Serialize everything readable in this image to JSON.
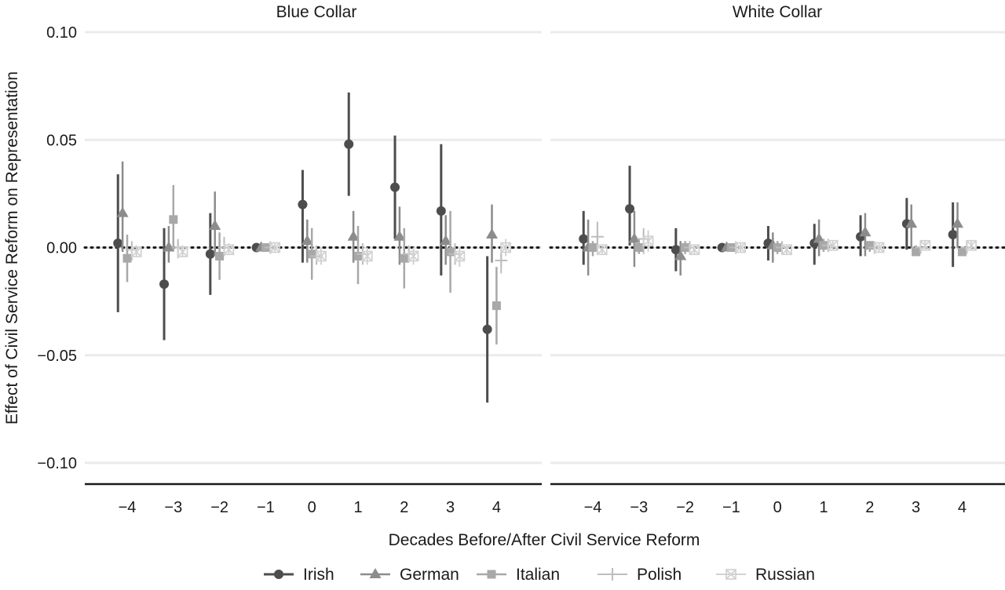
{
  "chart_data": {
    "type": "scatter",
    "subtype": "coefficient plot with confidence intervals",
    "xlabel": "Decades Before/After Civil Service Reform",
    "ylabel": "Effect of Civil Service Reform on Representation",
    "x_ticks": [
      "−4",
      "−3",
      "−2",
      "−1",
      "0",
      "1",
      "2",
      "3",
      "4"
    ],
    "y_ticks": [
      "0.10",
      "0.05",
      "0.00",
      "−0.05",
      "−0.10"
    ],
    "ylim": [
      -0.11,
      0.105
    ],
    "grid": true,
    "reference_line": 0,
    "legend_position": "bottom",
    "x": [
      -4,
      -3,
      -2,
      -1,
      0,
      1,
      2,
      3,
      4
    ],
    "series": [
      {
        "name": "Irish",
        "marker": "circle",
        "color": "#4d4d4d",
        "lw": 3
      },
      {
        "name": "German",
        "marker": "triangle",
        "color": "#8c8c8c",
        "lw": 2.5
      },
      {
        "name": "Italian",
        "marker": "square",
        "color": "#a8a8a8",
        "lw": 2.5
      },
      {
        "name": "Polish",
        "marker": "plus",
        "color": "#bdbdbd",
        "lw": 2
      },
      {
        "name": "Russian",
        "marker": "square-x",
        "color": "#d2d2d2",
        "lw": 2
      }
    ],
    "panels": [
      {
        "title": "Blue Collar",
        "estimates": {
          "Irish": [
            0.002,
            -0.017,
            -0.003,
            0.0,
            0.02,
            0.048,
            0.028,
            0.017,
            -0.038
          ],
          "German": [
            0.016,
            0.0,
            0.01,
            0.0,
            0.003,
            0.005,
            0.005,
            0.003,
            0.006
          ],
          "Italian": [
            -0.005,
            0.013,
            -0.004,
            0.0,
            -0.003,
            -0.004,
            -0.005,
            -0.002,
            -0.027
          ],
          "Polish": [
            -0.001,
            0.0,
            0.0,
            0.0,
            -0.004,
            -0.003,
            -0.003,
            -0.003,
            -0.006
          ],
          "Russian": [
            -0.002,
            -0.002,
            -0.001,
            0.0,
            -0.004,
            -0.004,
            -0.004,
            -0.004,
            0.0
          ]
        },
        "ci_low": {
          "Irish": [
            -0.03,
            -0.043,
            -0.022,
            0.0,
            -0.007,
            0.024,
            0.004,
            -0.013,
            -0.072
          ],
          "German": [
            -0.002,
            -0.007,
            -0.004,
            -0.001,
            -0.007,
            -0.007,
            -0.008,
            -0.008,
            -0.007
          ],
          "Italian": [
            -0.016,
            -0.001,
            -0.015,
            -0.001,
            -0.015,
            -0.017,
            -0.019,
            -0.021,
            -0.045
          ],
          "Polish": [
            -0.006,
            -0.005,
            -0.004,
            -0.002,
            -0.008,
            -0.008,
            -0.007,
            -0.008,
            -0.012
          ],
          "Russian": [
            -0.004,
            -0.004,
            -0.003,
            -0.002,
            -0.008,
            -0.008,
            -0.008,
            -0.009,
            -0.004
          ]
        },
        "ci_high": {
          "Irish": [
            0.034,
            0.009,
            0.016,
            0.001,
            0.036,
            0.072,
            0.052,
            0.048,
            -0.004
          ],
          "German": [
            0.04,
            0.01,
            0.026,
            0.002,
            0.013,
            0.017,
            0.019,
            0.015,
            0.02
          ],
          "Italian": [
            0.006,
            0.029,
            0.007,
            0.002,
            0.009,
            0.01,
            0.009,
            0.017,
            -0.009
          ],
          "Polish": [
            0.003,
            0.004,
            0.005,
            0.002,
            0.001,
            0.002,
            0.001,
            0.002,
            0.0
          ],
          "Russian": [
            0.001,
            0.001,
            0.002,
            0.002,
            0.0,
            0.0,
            0.0,
            -0.0,
            0.004
          ]
        }
      },
      {
        "title": "White Collar",
        "estimates": {
          "Irish": [
            0.004,
            0.018,
            -0.001,
            0.0,
            0.002,
            0.002,
            0.005,
            0.011,
            0.006
          ],
          "German": [
            0.0,
            0.004,
            -0.004,
            0.0,
            0.001,
            0.004,
            0.007,
            0.011,
            0.011
          ],
          "Italian": [
            0.0,
            0.0,
            0.0,
            0.0,
            0.0,
            0.001,
            0.001,
            -0.002,
            -0.002
          ],
          "Polish": [
            0.005,
            0.004,
            0.0,
            0.0,
            0.0,
            0.001,
            0.0,
            0.0,
            0.0
          ],
          "Russian": [
            -0.001,
            0.003,
            -0.001,
            0.0,
            -0.001,
            0.001,
            0.0,
            0.001,
            0.001
          ]
        },
        "ci_low": {
          "Irish": [
            -0.008,
            0.001,
            -0.011,
            0.0,
            -0.006,
            -0.008,
            -0.004,
            -0.001,
            -0.009
          ],
          "German": [
            -0.013,
            -0.009,
            -0.013,
            -0.001,
            -0.007,
            -0.004,
            -0.004,
            0.0,
            0.0
          ],
          "Italian": [
            -0.004,
            -0.003,
            -0.003,
            -0.001,
            -0.003,
            -0.002,
            -0.002,
            -0.004,
            -0.004
          ],
          "Polish": [
            -0.002,
            -0.003,
            -0.003,
            -0.001,
            -0.003,
            -0.002,
            -0.002,
            -0.002,
            -0.002
          ],
          "Russian": [
            -0.003,
            -0.002,
            -0.003,
            -0.002,
            -0.003,
            -0.001,
            -0.002,
            -0.001,
            -0.001
          ]
        },
        "ci_high": {
          "Irish": [
            0.017,
            0.038,
            0.009,
            0.001,
            0.01,
            0.011,
            0.015,
            0.023,
            0.021
          ],
          "German": [
            0.013,
            0.017,
            0.003,
            0.002,
            0.007,
            0.013,
            0.016,
            0.02,
            0.021
          ],
          "Italian": [
            0.003,
            0.004,
            0.003,
            0.002,
            0.003,
            0.004,
            0.003,
            0.001,
            0.0
          ],
          "Polish": [
            0.012,
            0.009,
            0.003,
            0.002,
            0.003,
            0.004,
            0.002,
            0.002,
            0.002
          ],
          "Russian": [
            0.001,
            0.008,
            0.001,
            0.002,
            0.001,
            0.003,
            0.002,
            0.003,
            0.003
          ]
        }
      }
    ]
  }
}
